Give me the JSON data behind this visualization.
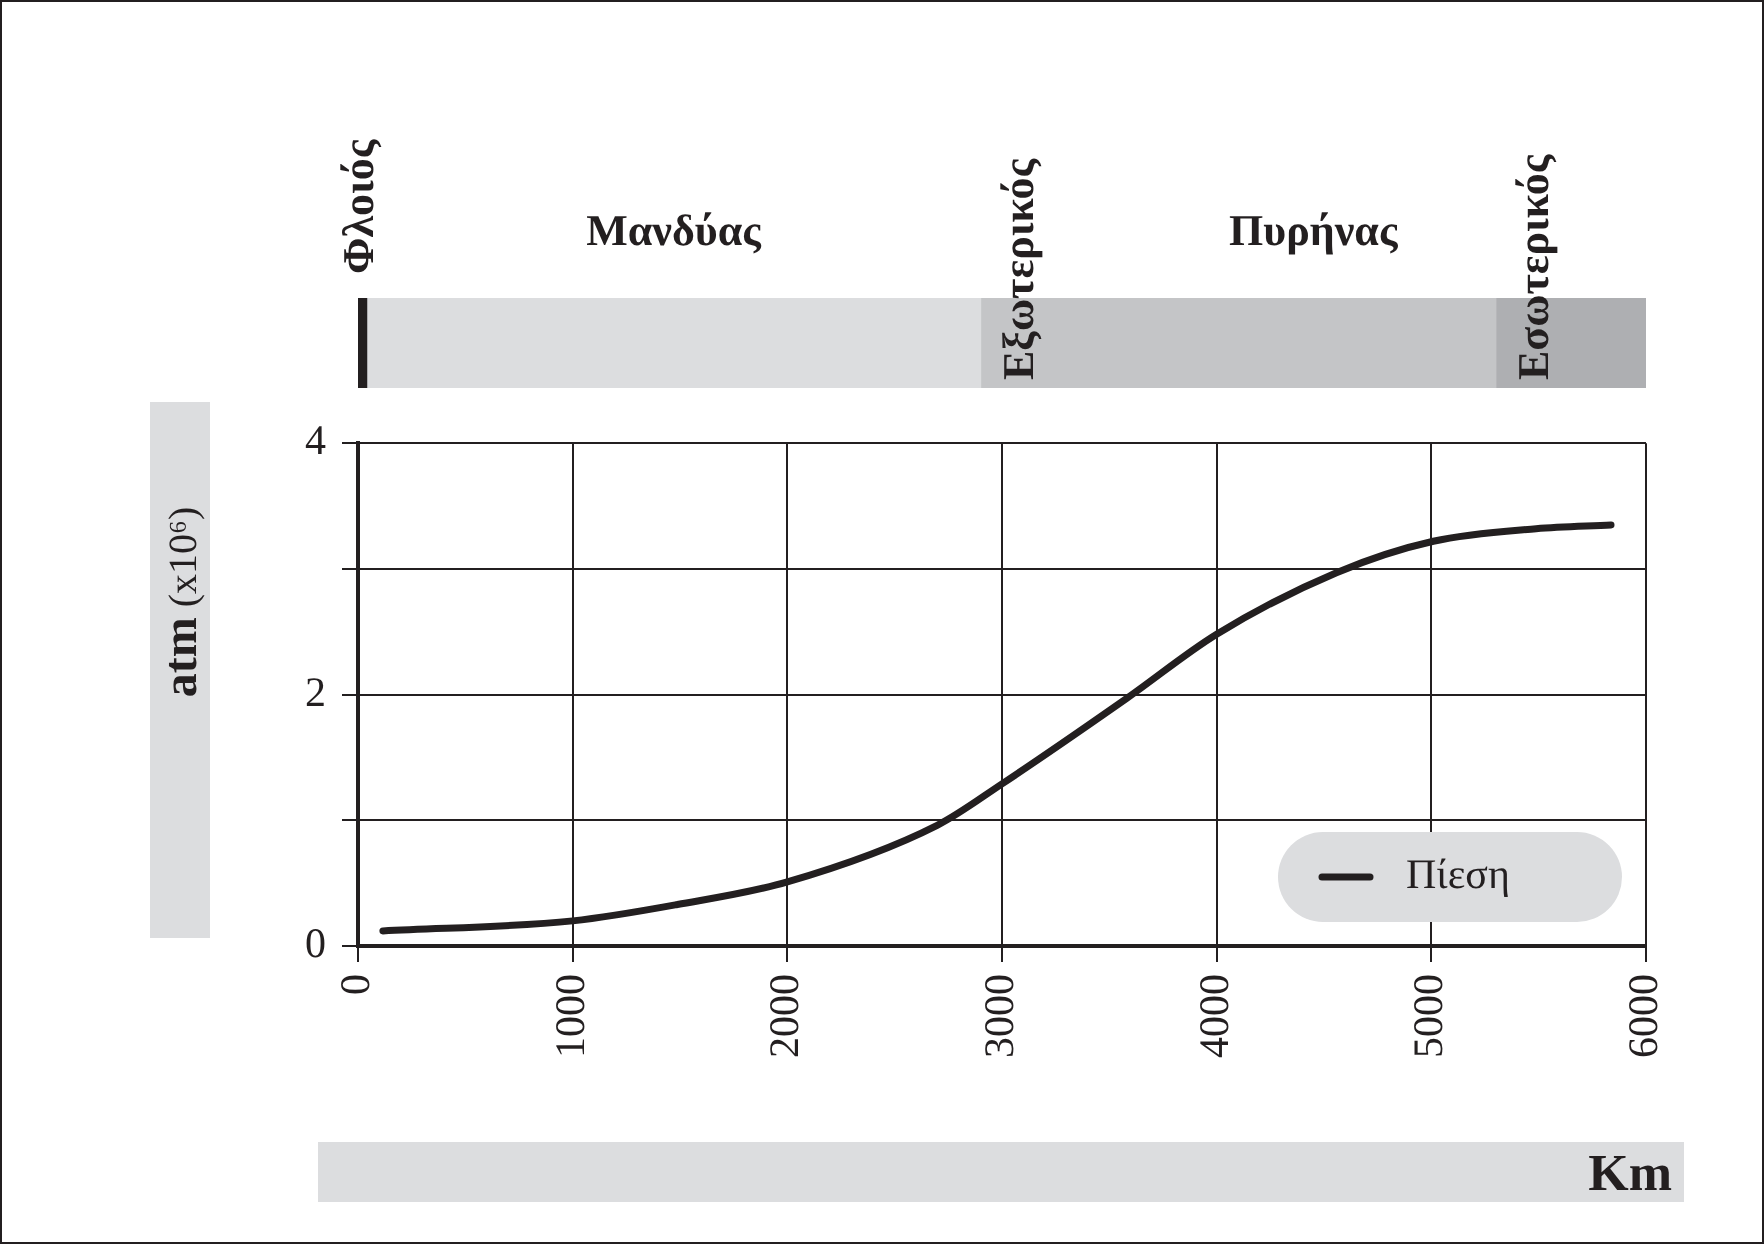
{
  "chart_data": [
    {
      "type": "bar",
      "orientation": "horizontal",
      "stacked": true,
      "categories": [
        null
      ],
      "xlim": [
        0,
        6000
      ],
      "tick_labels": false,
      "legend": false,
      "annotations": [
        "Πυρήνας"
      ],
      "series": [
        {
          "name": "Φλοιός",
          "color": "#231f20",
          "values": [
            40
          ]
        },
        {
          "name": "Μανδύας",
          "color": "#dcdddf",
          "values": [
            2860
          ]
        },
        {
          "name": "Εξωτερικός",
          "color": "#c4c5c7",
          "values": [
            2400
          ]
        },
        {
          "name": "Εσωτερικός",
          "color": "#aeafb2",
          "values": [
            700
          ]
        }
      ]
    },
    {
      "type": "line",
      "xlabel": "Km",
      "ylabel": "atm (x10⁶)",
      "x": [
        116,
        1000,
        1488,
        2000,
        2698,
        3000,
        3581,
        4000,
        4558,
        5009,
        5488,
        5837
      ],
      "series": [
        {
          "name": "Πίεση",
          "color": "#231f20",
          "values": [
            0.12,
            0.2,
            0.33,
            0.51,
            0.96,
            1.29,
            1.97,
            2.48,
            2.97,
            3.22,
            3.32,
            3.35
          ]
        }
      ],
      "xlim": [
        0,
        6000
      ],
      "xticks": [
        0,
        1000,
        2000,
        3000,
        4000,
        5000,
        6000
      ],
      "ylim": [
        0,
        4
      ],
      "yticks": [
        0,
        {
          "value": 1,
          "label": null
        },
        2,
        {
          "value": 3,
          "label": null
        },
        4
      ],
      "grid": true,
      "legend": "bottom right",
      "marker": "none",
      "line_style": "solid"
    }
  ]
}
